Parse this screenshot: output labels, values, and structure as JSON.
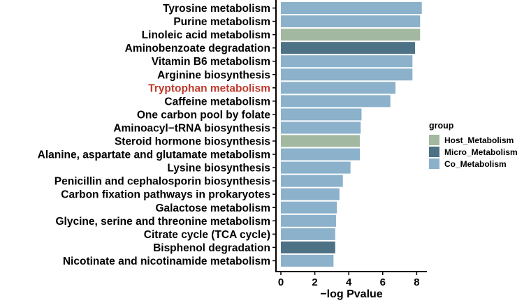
{
  "chart_data": {
    "type": "bar",
    "orientation": "horizontal",
    "categories": [
      "Tyrosine metabolism",
      "Purine metabolism",
      "Linoleic acid metabolism",
      "Aminobenzoate degradation",
      "Vitamin B6 metabolism",
      "Arginine biosynthesis",
      "Tryptophan metabolism",
      "Caffeine metabolism",
      "One carbon pool by folate",
      "Aminoacyl−tRNA biosynthesis",
      "Steroid hormone biosynthesis",
      "Alanine, aspartate and glutamate metabolism",
      "Lysine biosynthesis",
      "Penicillin and cephalosporin biosynthesis",
      "Carbon fixation pathways in prokaryotes",
      "Galactose metabolism",
      "Glycine, serine and threonine metabolism",
      "Citrate cycle (TCA cycle)",
      "Bisphenol degradation",
      "Nicotinate and nicotinamide metabolism"
    ],
    "values": [
      8.3,
      8.2,
      8.2,
      7.9,
      7.75,
      7.75,
      6.75,
      6.45,
      4.75,
      4.7,
      4.65,
      4.65,
      4.1,
      3.65,
      3.45,
      3.3,
      3.25,
      3.2,
      3.2,
      3.1
    ],
    "groups": [
      "Co_Metabolism",
      "Co_Metabolism",
      "Host_Metabolism",
      "Micro_Metabolism",
      "Co_Metabolism",
      "Co_Metabolism",
      "Co_Metabolism",
      "Co_Metabolism",
      "Co_Metabolism",
      "Co_Metabolism",
      "Host_Metabolism",
      "Co_Metabolism",
      "Co_Metabolism",
      "Co_Metabolism",
      "Co_Metabolism",
      "Co_Metabolism",
      "Co_Metabolism",
      "Co_Metabolism",
      "Micro_Metabolism",
      "Co_Metabolism"
    ],
    "highlighted_category": "Tryptophan metabolism",
    "highlight_color": "#c0392b",
    "xlabel": "−log Pvalue",
    "xlim": [
      0,
      8.6
    ],
    "xticks": [
      0,
      2,
      4,
      6,
      8
    ],
    "grid": false,
    "legend": {
      "title": "group",
      "position": "right",
      "entries": [
        {
          "name": "Host_Metabolism",
          "color": "#a3b8a0"
        },
        {
          "name": "Micro_Metabolism",
          "color": "#4d7185"
        },
        {
          "name": "Co_Metabolism",
          "color": "#8bb1cb"
        }
      ]
    }
  }
}
